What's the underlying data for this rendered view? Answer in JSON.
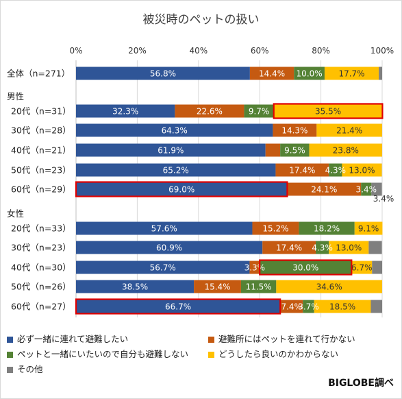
{
  "chart_data": {
    "type": "bar",
    "orientation": "horizontal",
    "stacked": true,
    "title": "被災時のペットの扱い",
    "x_ticks": [
      "0%",
      "20%",
      "40%",
      "60%",
      "80%",
      "100%"
    ],
    "xlim": [
      0,
      100
    ],
    "grid": true,
    "groups": [
      "男性",
      "女性"
    ],
    "categories": [
      "全体（n=271）",
      "20代（n=31）",
      "30代（n=28）",
      "40代（n=21）",
      "50代（n=23）",
      "60代（n=29）",
      "20代（n=33）",
      "30代（n=23）",
      "40代（n=30）",
      "50代（n=26）",
      "60代（n=27）"
    ],
    "category_group": [
      "",
      "男性",
      "男性",
      "男性",
      "男性",
      "男性",
      "女性",
      "女性",
      "女性",
      "女性",
      "女性"
    ],
    "series": [
      {
        "name": "必ず一緒に連れて避難したい",
        "color": "#2F5597",
        "values": [
          56.8,
          32.3,
          64.3,
          61.9,
          65.2,
          69.0,
          57.6,
          60.9,
          56.7,
          38.5,
          66.7
        ]
      },
      {
        "name": "避難所にはペットを連れて行かない",
        "color": "#C55A11",
        "values": [
          14.4,
          22.6,
          14.3,
          4.8,
          17.4,
          24.1,
          15.2,
          17.4,
          3.3,
          15.4,
          7.4
        ]
      },
      {
        "name": "ペットと一緒にいたいので自分も避難しない",
        "color": "#548235",
        "values": [
          10.0,
          9.7,
          0,
          9.5,
          4.3,
          3.4,
          18.2,
          4.3,
          30.0,
          11.5,
          3.7
        ]
      },
      {
        "name": "どうしたら良いのかわからない",
        "color": "#FFC000",
        "values": [
          17.7,
          35.5,
          21.4,
          23.8,
          13.0,
          0,
          9.1,
          13.0,
          6.7,
          34.6,
          18.5
        ]
      },
      {
        "name": "その他",
        "color": "#7F7F7F",
        "values": [
          1.1,
          0,
          0,
          0,
          0,
          3.4,
          0,
          4.3,
          3.3,
          0,
          3.7
        ]
      }
    ],
    "data_labels": [
      [
        "56.8%",
        "14.4%",
        "10.0%",
        "17.7%",
        ""
      ],
      [
        "32.3%",
        "22.6%",
        "9.7%",
        "35.5%",
        ""
      ],
      [
        "64.3%",
        "14.3%",
        "",
        "21.4%",
        ""
      ],
      [
        "61.9%",
        "",
        "9.5%",
        "23.8%",
        ""
      ],
      [
        "65.2%",
        "17.4%",
        "4.3%",
        "13.0%",
        ""
      ],
      [
        "69.0%",
        "24.1%",
        "3.4%",
        "",
        "3.4%"
      ],
      [
        "57.6%",
        "15.2%",
        "18.2%",
        "9.1%",
        ""
      ],
      [
        "60.9%",
        "17.4%",
        "4.3%",
        "13.0%",
        ""
      ],
      [
        "56.7%",
        "3.3%",
        "30.0%",
        "6.7%",
        ""
      ],
      [
        "38.5%",
        "15.4%",
        "11.5%",
        "34.6%",
        ""
      ],
      [
        "66.7%",
        "7.4%",
        "3.7%",
        "18.5%",
        ""
      ]
    ],
    "highlights": [
      {
        "category_index": 1,
        "series_index": 3
      },
      {
        "category_index": 5,
        "series_index": 0
      },
      {
        "category_index": 8,
        "series_index": 2
      },
      {
        "category_index": 10,
        "series_index": 0
      }
    ],
    "highlight_color": "#E00000"
  },
  "source_note": "BIGLOBE調べ"
}
